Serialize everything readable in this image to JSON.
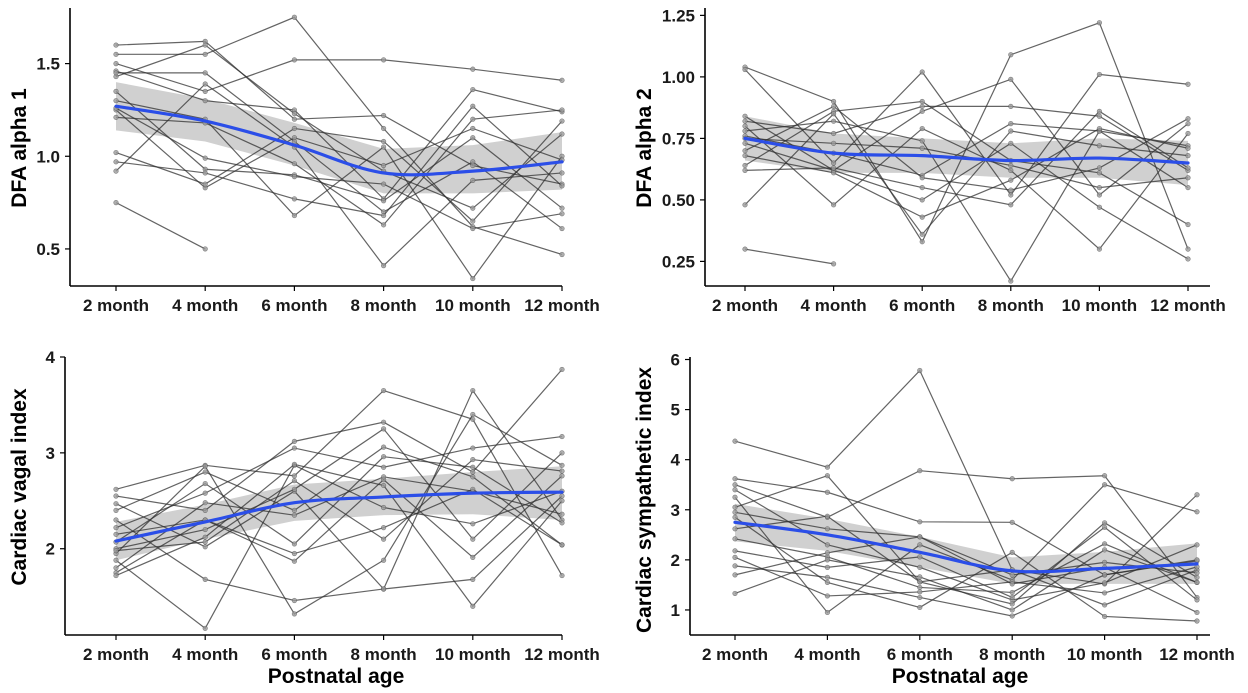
{
  "colors": {
    "trend": "#2b4ee8",
    "band": "#c8c8c8"
  },
  "chart_data": [
    {
      "type": "line",
      "title": "",
      "xlabel": "",
      "ylabel": "DFA alpha 1",
      "categories": [
        "2 month",
        "4 month",
        "6 month",
        "8 month",
        "10 month",
        "12 month"
      ],
      "ylim": [
        0.3,
        1.8
      ],
      "yticks": [
        0.5,
        1.0,
        1.5
      ],
      "ytick_labels": [
        "0.5",
        "1.0",
        "1.5"
      ],
      "subjects": [
        [
          1.6,
          1.62,
          1.2,
          1.22,
          0.95,
          0.85
        ],
        [
          1.55,
          1.55,
          1.75,
          1.15,
          0.62,
          0.47
        ],
        [
          1.5,
          1.35,
          1.52,
          1.52,
          1.47,
          1.41
        ],
        [
          1.46,
          1.3,
          1.25,
          0.77,
          1.36,
          1.24
        ],
        [
          1.43,
          1.6,
          1.23,
          0.92,
          0.72,
          1.12
        ],
        [
          1.35,
          0.93,
          0.9,
          0.76,
          1.1,
          0.72
        ],
        [
          1.3,
          1.2,
          0.68,
          1.05,
          0.34,
          1.0
        ],
        [
          1.25,
          0.83,
          1.1,
          0.95,
          1.15,
          0.98
        ],
        [
          1.21,
          1.18,
          0.96,
          0.63,
          1.2,
          1.25
        ],
        [
          1.45,
          1.45,
          1.08,
          0.7,
          0.97,
          0.61
        ],
        [
          1.02,
          0.85,
          1.15,
          1.08,
          0.65,
          1.19
        ],
        [
          0.97,
          0.91,
          0.77,
          0.68,
          1.27,
          0.84
        ],
        [
          0.92,
          1.39,
          1.05,
          0.41,
          0.87,
          0.91
        ],
        [
          1.26,
          0.99,
          0.89,
          0.85,
          0.61,
          0.69
        ],
        [
          0.75,
          0.5,
          null,
          null,
          null,
          null
        ]
      ],
      "trend": [
        1.27,
        1.19,
        1.06,
        0.91,
        0.92,
        0.97
      ],
      "ci_lower": [
        1.14,
        1.08,
        0.95,
        0.8,
        0.8,
        0.82
      ],
      "ci_upper": [
        1.4,
        1.31,
        1.18,
        1.04,
        1.06,
        1.13
      ]
    },
    {
      "type": "line",
      "title": "",
      "xlabel": "",
      "ylabel": "DFA alpha 2",
      "categories": [
        "2 month",
        "4 month",
        "6 month",
        "8 month",
        "10 month",
        "12 month"
      ],
      "ylim": [
        0.15,
        1.28
      ],
      "yticks": [
        0.25,
        0.5,
        0.75,
        1.0,
        1.25
      ],
      "ytick_labels": [
        "0.25",
        "0.50",
        "0.75",
        "1.00",
        "1.25"
      ],
      "subjects": [
        [
          1.04,
          0.9,
          0.33,
          1.09,
          1.22,
          0.3
        ],
        [
          1.03,
          0.65,
          1.02,
          0.52,
          1.01,
          0.97
        ],
        [
          0.84,
          0.62,
          0.86,
          0.99,
          0.52,
          0.81
        ],
        [
          0.82,
          0.77,
          0.88,
          0.88,
          0.84,
          0.62
        ],
        [
          0.8,
          0.48,
          0.79,
          0.62,
          0.3,
          0.77
        ],
        [
          0.78,
          0.82,
          0.74,
          0.17,
          0.78,
          0.55
        ],
        [
          0.76,
          0.69,
          0.6,
          0.81,
          0.78,
          0.72
        ],
        [
          0.73,
          0.62,
          0.5,
          0.73,
          0.47,
          0.26
        ],
        [
          0.7,
          0.88,
          0.59,
          0.54,
          0.63,
          0.83
        ],
        [
          0.68,
          0.61,
          0.43,
          0.58,
          0.79,
          0.71
        ],
        [
          0.64,
          0.86,
          0.9,
          0.66,
          0.61,
          0.4
        ],
        [
          0.62,
          0.63,
          0.55,
          0.48,
          0.86,
          0.63
        ],
        [
          0.48,
          0.85,
          0.36,
          0.78,
          0.72,
          0.68
        ],
        [
          0.75,
          0.73,
          0.71,
          0.64,
          0.55,
          0.59
        ],
        [
          0.3,
          0.24,
          null,
          null,
          null,
          null
        ]
      ],
      "trend": [
        0.75,
        0.69,
        0.68,
        0.66,
        0.67,
        0.65
      ],
      "ci_lower": [
        0.66,
        0.61,
        0.61,
        0.59,
        0.59,
        0.56
      ],
      "ci_upper": [
        0.84,
        0.77,
        0.75,
        0.73,
        0.75,
        0.74
      ]
    },
    {
      "type": "line",
      "title": "",
      "xlabel": "Postnatal age",
      "ylabel": "Cardiac vagal index",
      "categories": [
        "2 month",
        "4 month",
        "6 month",
        "8 month",
        "10 month",
        "12 month"
      ],
      "ylim": [
        1.1,
        4.0
      ],
      "yticks": [
        2,
        3,
        4
      ],
      "ytick_labels": [
        "2",
        "3",
        "4"
      ],
      "subjects": [
        [
          2.62,
          2.87,
          2.76,
          3.65,
          3.35,
          1.72
        ],
        [
          2.55,
          2.4,
          3.12,
          3.32,
          2.8,
          3.87
        ],
        [
          2.47,
          2.02,
          2.6,
          1.58,
          3.65,
          2.3
        ],
        [
          2.4,
          2.8,
          2.4,
          3.06,
          2.75,
          2.04
        ],
        [
          2.3,
          1.68,
          1.46,
          1.58,
          1.68,
          2.55
        ],
        [
          2.22,
          2.58,
          3.05,
          2.85,
          3.05,
          3.17
        ],
        [
          2.15,
          2.3,
          1.87,
          2.72,
          1.91,
          2.76
        ],
        [
          2.07,
          2.68,
          2.05,
          2.96,
          2.85,
          2.27
        ],
        [
          2.0,
          2.2,
          2.62,
          3.25,
          2.1,
          3.0
        ],
        [
          1.95,
          2.86,
          1.32,
          1.88,
          3.4,
          2.87
        ],
        [
          1.88,
          1.17,
          2.87,
          2.43,
          2.26,
          2.6
        ],
        [
          1.8,
          2.48,
          2.35,
          2.75,
          2.6,
          2.36
        ],
        [
          1.75,
          2.3,
          1.95,
          2.22,
          2.62,
          2.04
        ],
        [
          1.72,
          2.12,
          2.88,
          2.66,
          1.4,
          2.5
        ],
        [
          1.98,
          2.07,
          2.71,
          2.1,
          2.93,
          2.81
        ]
      ],
      "trend": [
        2.08,
        2.28,
        2.48,
        2.54,
        2.58,
        2.59
      ],
      "ci_lower": [
        1.88,
        2.1,
        2.29,
        2.35,
        2.36,
        2.3
      ],
      "ci_upper": [
        2.28,
        2.46,
        2.67,
        2.73,
        2.8,
        2.86
      ]
    },
    {
      "type": "line",
      "title": "",
      "xlabel": "Postnatal age",
      "ylabel": "Cardiac sympathetic index",
      "categories": [
        "2 month",
        "4 month",
        "6 month",
        "8 month",
        "10 month",
        "12 month"
      ],
      "ylim": [
        0.5,
        6.05
      ],
      "yticks": [
        1,
        2,
        3,
        4,
        5,
        6
      ],
      "ytick_labels": [
        "1",
        "2",
        "3",
        "4",
        "5",
        "6"
      ],
      "subjects": [
        [
          4.37,
          3.85,
          5.78,
          1.8,
          1.52,
          3.3
        ],
        [
          3.62,
          3.35,
          2.76,
          2.75,
          1.7,
          1.98
        ],
        [
          3.5,
          2.85,
          3.78,
          3.62,
          3.68,
          1.25
        ],
        [
          3.4,
          2.3,
          1.85,
          1.2,
          1.54,
          2.3
        ],
        [
          3.25,
          0.95,
          2.3,
          1.6,
          3.5,
          2.96
        ],
        [
          3.05,
          3.68,
          1.56,
          1.8,
          1.1,
          1.8
        ],
        [
          2.85,
          1.55,
          1.05,
          2.15,
          0.87,
          0.78
        ],
        [
          2.62,
          2.87,
          1.56,
          1.12,
          2.74,
          1.65
        ],
        [
          2.42,
          2.06,
          1.45,
          1.35,
          2.32,
          1.55
        ],
        [
          2.18,
          1.85,
          2.06,
          1.25,
          2.65,
          1.2
        ],
        [
          2.05,
          1.28,
          1.36,
          1.56,
          1.34,
          1.86
        ],
        [
          1.88,
          1.65,
          1.25,
          0.88,
          1.7,
          2.0
        ],
        [
          1.7,
          2.14,
          2.46,
          1.52,
          1.85,
          0.95
        ],
        [
          1.33,
          2.0,
          1.66,
          1.0,
          2.2,
          1.55
        ],
        [
          2.95,
          2.62,
          2.46,
          1.7,
          1.95,
          1.74
        ]
      ],
      "trend": [
        2.75,
        2.5,
        2.15,
        1.78,
        1.83,
        1.92
      ],
      "ci_lower": [
        2.37,
        2.18,
        1.85,
        1.52,
        1.52,
        1.52
      ],
      "ci_upper": [
        3.12,
        2.82,
        2.46,
        2.05,
        2.16,
        2.33
      ]
    }
  ]
}
